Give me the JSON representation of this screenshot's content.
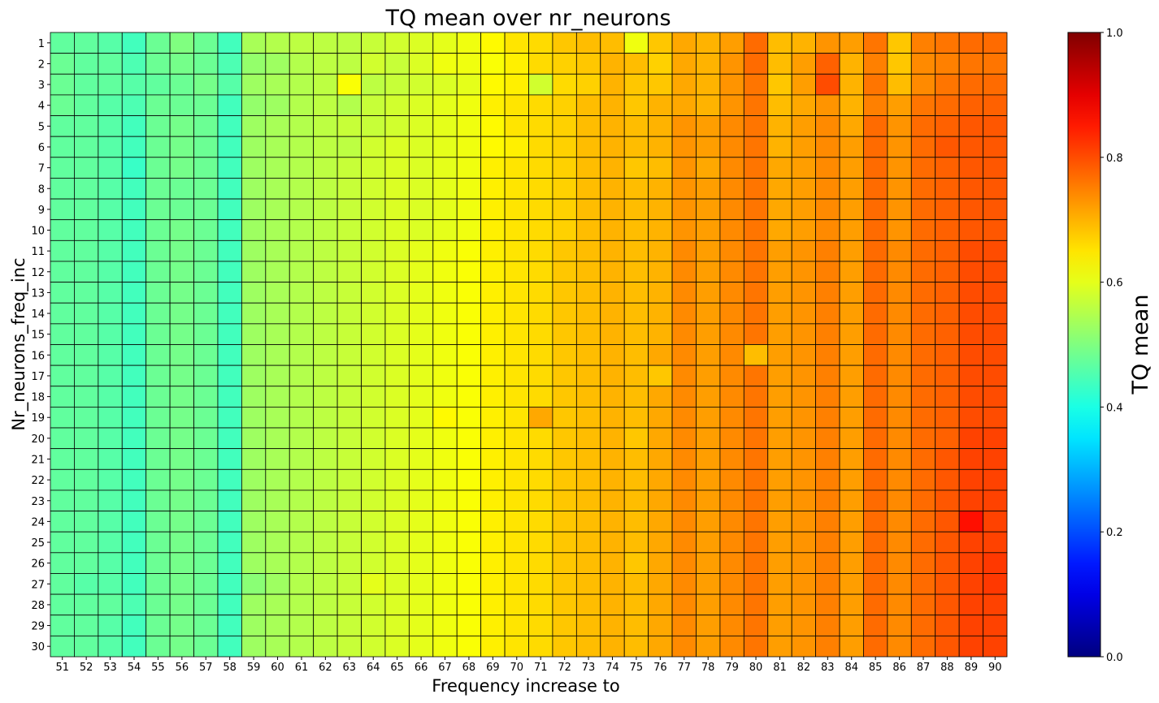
{
  "chart_data": {
    "type": "heatmap",
    "title": "TQ mean over nr_neurons",
    "xlabel": "Frequency increase to",
    "ylabel": "Nr_neurons_freq_inc",
    "colorbar_label": "TQ mean",
    "colormap": "jet",
    "vmin": 0,
    "vmax": 1,
    "colorbar_ticks": [
      "0.0",
      "0.2",
      "0.4",
      "0.6",
      "0.8",
      "1.0"
    ],
    "x": [
      "51",
      "52",
      "53",
      "54",
      "55",
      "56",
      "57",
      "58",
      "59",
      "60",
      "61",
      "62",
      "63",
      "64",
      "65",
      "66",
      "67",
      "68",
      "69",
      "70",
      "71",
      "72",
      "73",
      "74",
      "75",
      "76",
      "77",
      "78",
      "79",
      "80",
      "81",
      "82",
      "83",
      "84",
      "85",
      "86",
      "87",
      "88",
      "89",
      "90"
    ],
    "y": [
      "1",
      "2",
      "3",
      "4",
      "5",
      "6",
      "7",
      "8",
      "9",
      "10",
      "11",
      "12",
      "13",
      "14",
      "15",
      "16",
      "17",
      "18",
      "19",
      "20",
      "21",
      "22",
      "23",
      "24",
      "25",
      "26",
      "27",
      "28",
      "29",
      "30"
    ],
    "values": [
      [
        0.47,
        0.47,
        0.46,
        0.44,
        0.48,
        0.5,
        0.48,
        0.44,
        0.54,
        0.55,
        0.56,
        0.56,
        0.56,
        0.57,
        0.58,
        0.59,
        0.6,
        0.61,
        0.63,
        0.65,
        0.66,
        0.68,
        0.69,
        0.69,
        0.61,
        0.68,
        0.71,
        0.7,
        0.72,
        0.77,
        0.69,
        0.7,
        0.73,
        0.72,
        0.76,
        0.68,
        0.75,
        0.76,
        0.77,
        0.77
      ],
      [
        0.48,
        0.47,
        0.47,
        0.45,
        0.48,
        0.49,
        0.48,
        0.45,
        0.52,
        0.53,
        0.55,
        0.56,
        0.56,
        0.58,
        0.57,
        0.59,
        0.61,
        0.61,
        0.62,
        0.64,
        0.66,
        0.67,
        0.68,
        0.7,
        0.69,
        0.67,
        0.71,
        0.7,
        0.73,
        0.77,
        0.69,
        0.72,
        0.78,
        0.7,
        0.75,
        0.68,
        0.74,
        0.75,
        0.76,
        0.76
      ],
      [
        0.48,
        0.47,
        0.47,
        0.46,
        0.47,
        0.48,
        0.49,
        0.46,
        0.53,
        0.54,
        0.55,
        0.56,
        0.62,
        0.56,
        0.57,
        0.58,
        0.59,
        0.6,
        0.63,
        0.64,
        0.58,
        0.66,
        0.67,
        0.7,
        0.68,
        0.68,
        0.71,
        0.7,
        0.73,
        0.76,
        0.68,
        0.72,
        0.8,
        0.7,
        0.76,
        0.69,
        0.74,
        0.76,
        0.77,
        0.77
      ],
      [
        0.48,
        0.47,
        0.46,
        0.45,
        0.48,
        0.48,
        0.48,
        0.44,
        0.52,
        0.53,
        0.55,
        0.56,
        0.55,
        0.57,
        0.58,
        0.59,
        0.6,
        0.61,
        0.64,
        0.65,
        0.66,
        0.67,
        0.69,
        0.7,
        0.68,
        0.7,
        0.71,
        0.7,
        0.73,
        0.76,
        0.69,
        0.71,
        0.73,
        0.7,
        0.75,
        0.72,
        0.76,
        0.77,
        0.78,
        0.78
      ],
      [
        0.47,
        0.47,
        0.46,
        0.44,
        0.48,
        0.49,
        0.48,
        0.44,
        0.53,
        0.54,
        0.55,
        0.56,
        0.57,
        0.57,
        0.58,
        0.59,
        0.6,
        0.61,
        0.63,
        0.65,
        0.66,
        0.67,
        0.69,
        0.7,
        0.69,
        0.7,
        0.73,
        0.72,
        0.74,
        0.76,
        0.7,
        0.72,
        0.74,
        0.71,
        0.77,
        0.73,
        0.77,
        0.78,
        0.79,
        0.79
      ],
      [
        0.47,
        0.47,
        0.46,
        0.44,
        0.48,
        0.49,
        0.48,
        0.44,
        0.53,
        0.54,
        0.55,
        0.56,
        0.56,
        0.58,
        0.59,
        0.59,
        0.6,
        0.61,
        0.63,
        0.64,
        0.66,
        0.67,
        0.69,
        0.7,
        0.69,
        0.7,
        0.73,
        0.72,
        0.74,
        0.76,
        0.7,
        0.72,
        0.74,
        0.72,
        0.77,
        0.73,
        0.77,
        0.79,
        0.79,
        0.79
      ],
      [
        0.47,
        0.47,
        0.46,
        0.43,
        0.48,
        0.49,
        0.48,
        0.44,
        0.53,
        0.54,
        0.55,
        0.56,
        0.57,
        0.58,
        0.59,
        0.59,
        0.6,
        0.61,
        0.64,
        0.65,
        0.66,
        0.67,
        0.69,
        0.7,
        0.68,
        0.69,
        0.73,
        0.71,
        0.74,
        0.76,
        0.71,
        0.72,
        0.74,
        0.72,
        0.77,
        0.73,
        0.77,
        0.78,
        0.79,
        0.79
      ],
      [
        0.47,
        0.47,
        0.46,
        0.44,
        0.48,
        0.48,
        0.48,
        0.44,
        0.53,
        0.54,
        0.55,
        0.56,
        0.57,
        0.58,
        0.59,
        0.59,
        0.6,
        0.61,
        0.64,
        0.65,
        0.66,
        0.67,
        0.69,
        0.7,
        0.69,
        0.7,
        0.73,
        0.72,
        0.74,
        0.76,
        0.71,
        0.72,
        0.74,
        0.72,
        0.77,
        0.73,
        0.77,
        0.78,
        0.79,
        0.79
      ],
      [
        0.47,
        0.47,
        0.46,
        0.44,
        0.48,
        0.48,
        0.48,
        0.44,
        0.53,
        0.54,
        0.55,
        0.56,
        0.57,
        0.58,
        0.59,
        0.59,
        0.6,
        0.61,
        0.64,
        0.65,
        0.66,
        0.67,
        0.69,
        0.7,
        0.69,
        0.7,
        0.73,
        0.72,
        0.74,
        0.76,
        0.71,
        0.72,
        0.74,
        0.72,
        0.77,
        0.73,
        0.77,
        0.78,
        0.79,
        0.79
      ],
      [
        0.47,
        0.47,
        0.46,
        0.44,
        0.48,
        0.49,
        0.48,
        0.44,
        0.53,
        0.54,
        0.55,
        0.56,
        0.57,
        0.58,
        0.59,
        0.59,
        0.6,
        0.61,
        0.64,
        0.65,
        0.66,
        0.67,
        0.69,
        0.7,
        0.69,
        0.7,
        0.73,
        0.72,
        0.74,
        0.76,
        0.71,
        0.72,
        0.74,
        0.72,
        0.77,
        0.73,
        0.77,
        0.78,
        0.79,
        0.79
      ],
      [
        0.47,
        0.47,
        0.46,
        0.44,
        0.48,
        0.49,
        0.48,
        0.44,
        0.53,
        0.54,
        0.55,
        0.56,
        0.57,
        0.58,
        0.59,
        0.6,
        0.61,
        0.62,
        0.64,
        0.65,
        0.66,
        0.68,
        0.69,
        0.7,
        0.69,
        0.7,
        0.74,
        0.72,
        0.74,
        0.76,
        0.72,
        0.73,
        0.75,
        0.72,
        0.77,
        0.74,
        0.77,
        0.78,
        0.8,
        0.8
      ],
      [
        0.47,
        0.47,
        0.46,
        0.44,
        0.48,
        0.49,
        0.48,
        0.44,
        0.53,
        0.54,
        0.55,
        0.56,
        0.57,
        0.58,
        0.59,
        0.6,
        0.61,
        0.62,
        0.64,
        0.65,
        0.66,
        0.68,
        0.69,
        0.7,
        0.69,
        0.7,
        0.74,
        0.72,
        0.74,
        0.76,
        0.72,
        0.73,
        0.75,
        0.72,
        0.77,
        0.74,
        0.77,
        0.78,
        0.8,
        0.8
      ],
      [
        0.47,
        0.47,
        0.46,
        0.44,
        0.48,
        0.49,
        0.48,
        0.44,
        0.53,
        0.54,
        0.55,
        0.56,
        0.57,
        0.58,
        0.59,
        0.6,
        0.61,
        0.62,
        0.64,
        0.65,
        0.66,
        0.68,
        0.69,
        0.7,
        0.69,
        0.7,
        0.74,
        0.72,
        0.74,
        0.76,
        0.72,
        0.73,
        0.75,
        0.72,
        0.77,
        0.74,
        0.77,
        0.78,
        0.8,
        0.8
      ],
      [
        0.47,
        0.47,
        0.46,
        0.44,
        0.48,
        0.49,
        0.48,
        0.44,
        0.53,
        0.54,
        0.55,
        0.56,
        0.57,
        0.58,
        0.59,
        0.6,
        0.61,
        0.62,
        0.64,
        0.65,
        0.66,
        0.68,
        0.69,
        0.7,
        0.69,
        0.7,
        0.74,
        0.72,
        0.74,
        0.76,
        0.72,
        0.73,
        0.75,
        0.72,
        0.77,
        0.74,
        0.77,
        0.78,
        0.8,
        0.8
      ],
      [
        0.47,
        0.47,
        0.46,
        0.44,
        0.48,
        0.49,
        0.48,
        0.44,
        0.53,
        0.54,
        0.55,
        0.56,
        0.57,
        0.58,
        0.59,
        0.6,
        0.61,
        0.62,
        0.64,
        0.65,
        0.66,
        0.68,
        0.69,
        0.7,
        0.69,
        0.7,
        0.74,
        0.72,
        0.74,
        0.76,
        0.72,
        0.73,
        0.75,
        0.72,
        0.77,
        0.74,
        0.77,
        0.78,
        0.8,
        0.8
      ],
      [
        0.47,
        0.47,
        0.46,
        0.44,
        0.48,
        0.49,
        0.48,
        0.44,
        0.53,
        0.54,
        0.55,
        0.56,
        0.57,
        0.58,
        0.59,
        0.6,
        0.61,
        0.62,
        0.64,
        0.65,
        0.66,
        0.68,
        0.69,
        0.7,
        0.69,
        0.71,
        0.74,
        0.72,
        0.74,
        0.69,
        0.72,
        0.73,
        0.75,
        0.72,
        0.77,
        0.74,
        0.77,
        0.78,
        0.8,
        0.8
      ],
      [
        0.47,
        0.47,
        0.46,
        0.44,
        0.48,
        0.49,
        0.48,
        0.44,
        0.53,
        0.54,
        0.55,
        0.56,
        0.57,
        0.58,
        0.59,
        0.6,
        0.61,
        0.62,
        0.64,
        0.65,
        0.66,
        0.68,
        0.69,
        0.7,
        0.69,
        0.68,
        0.74,
        0.72,
        0.74,
        0.76,
        0.72,
        0.73,
        0.75,
        0.72,
        0.77,
        0.74,
        0.77,
        0.78,
        0.8,
        0.8
      ],
      [
        0.47,
        0.47,
        0.46,
        0.44,
        0.48,
        0.49,
        0.48,
        0.44,
        0.53,
        0.54,
        0.55,
        0.56,
        0.57,
        0.58,
        0.59,
        0.6,
        0.61,
        0.62,
        0.64,
        0.65,
        0.66,
        0.68,
        0.69,
        0.7,
        0.69,
        0.71,
        0.74,
        0.72,
        0.74,
        0.76,
        0.72,
        0.73,
        0.75,
        0.72,
        0.77,
        0.74,
        0.77,
        0.78,
        0.8,
        0.8
      ],
      [
        0.47,
        0.47,
        0.46,
        0.44,
        0.48,
        0.49,
        0.48,
        0.44,
        0.53,
        0.54,
        0.55,
        0.56,
        0.57,
        0.58,
        0.59,
        0.6,
        0.63,
        0.62,
        0.64,
        0.65,
        0.71,
        0.68,
        0.69,
        0.7,
        0.69,
        0.71,
        0.74,
        0.72,
        0.74,
        0.76,
        0.72,
        0.73,
        0.75,
        0.72,
        0.77,
        0.74,
        0.77,
        0.78,
        0.8,
        0.8
      ],
      [
        0.47,
        0.47,
        0.46,
        0.44,
        0.48,
        0.49,
        0.48,
        0.44,
        0.53,
        0.54,
        0.55,
        0.56,
        0.57,
        0.58,
        0.59,
        0.6,
        0.61,
        0.62,
        0.64,
        0.65,
        0.66,
        0.68,
        0.69,
        0.7,
        0.68,
        0.71,
        0.74,
        0.72,
        0.74,
        0.76,
        0.72,
        0.73,
        0.75,
        0.72,
        0.77,
        0.74,
        0.77,
        0.78,
        0.81,
        0.81
      ],
      [
        0.47,
        0.47,
        0.46,
        0.44,
        0.48,
        0.49,
        0.48,
        0.44,
        0.53,
        0.54,
        0.55,
        0.56,
        0.57,
        0.58,
        0.59,
        0.6,
        0.61,
        0.62,
        0.64,
        0.65,
        0.66,
        0.68,
        0.69,
        0.7,
        0.69,
        0.71,
        0.74,
        0.72,
        0.74,
        0.76,
        0.72,
        0.73,
        0.75,
        0.72,
        0.77,
        0.74,
        0.77,
        0.79,
        0.81,
        0.81
      ],
      [
        0.47,
        0.47,
        0.46,
        0.44,
        0.48,
        0.49,
        0.48,
        0.44,
        0.53,
        0.54,
        0.55,
        0.56,
        0.57,
        0.58,
        0.59,
        0.6,
        0.61,
        0.62,
        0.64,
        0.65,
        0.66,
        0.68,
        0.69,
        0.7,
        0.69,
        0.71,
        0.74,
        0.72,
        0.74,
        0.76,
        0.72,
        0.73,
        0.75,
        0.72,
        0.77,
        0.74,
        0.77,
        0.79,
        0.81,
        0.81
      ],
      [
        0.47,
        0.47,
        0.46,
        0.44,
        0.48,
        0.49,
        0.48,
        0.44,
        0.53,
        0.54,
        0.55,
        0.56,
        0.57,
        0.58,
        0.59,
        0.6,
        0.61,
        0.62,
        0.64,
        0.65,
        0.66,
        0.68,
        0.69,
        0.7,
        0.69,
        0.71,
        0.74,
        0.72,
        0.74,
        0.76,
        0.72,
        0.73,
        0.75,
        0.72,
        0.77,
        0.74,
        0.77,
        0.79,
        0.81,
        0.81
      ],
      [
        0.47,
        0.47,
        0.46,
        0.44,
        0.48,
        0.49,
        0.48,
        0.44,
        0.53,
        0.54,
        0.55,
        0.56,
        0.57,
        0.58,
        0.59,
        0.6,
        0.61,
        0.62,
        0.64,
        0.65,
        0.66,
        0.68,
        0.69,
        0.7,
        0.69,
        0.71,
        0.74,
        0.72,
        0.74,
        0.76,
        0.72,
        0.73,
        0.75,
        0.72,
        0.77,
        0.74,
        0.77,
        0.79,
        0.86,
        0.81
      ],
      [
        0.47,
        0.47,
        0.46,
        0.44,
        0.48,
        0.49,
        0.48,
        0.44,
        0.53,
        0.54,
        0.55,
        0.56,
        0.57,
        0.58,
        0.59,
        0.6,
        0.61,
        0.62,
        0.64,
        0.65,
        0.66,
        0.68,
        0.69,
        0.7,
        0.69,
        0.71,
        0.74,
        0.72,
        0.74,
        0.76,
        0.72,
        0.73,
        0.75,
        0.72,
        0.77,
        0.74,
        0.77,
        0.79,
        0.81,
        0.81
      ],
      [
        0.47,
        0.47,
        0.46,
        0.44,
        0.48,
        0.49,
        0.48,
        0.44,
        0.53,
        0.54,
        0.55,
        0.56,
        0.57,
        0.58,
        0.59,
        0.6,
        0.61,
        0.62,
        0.64,
        0.65,
        0.66,
        0.68,
        0.69,
        0.7,
        0.68,
        0.71,
        0.74,
        0.72,
        0.74,
        0.76,
        0.72,
        0.73,
        0.75,
        0.72,
        0.77,
        0.74,
        0.77,
        0.79,
        0.81,
        0.82
      ],
      [
        0.47,
        0.46,
        0.46,
        0.44,
        0.48,
        0.49,
        0.48,
        0.44,
        0.51,
        0.53,
        0.55,
        0.56,
        0.57,
        0.6,
        0.59,
        0.6,
        0.61,
        0.62,
        0.64,
        0.65,
        0.66,
        0.68,
        0.69,
        0.7,
        0.69,
        0.71,
        0.74,
        0.72,
        0.74,
        0.76,
        0.72,
        0.73,
        0.75,
        0.72,
        0.77,
        0.74,
        0.77,
        0.79,
        0.81,
        0.82
      ],
      [
        0.47,
        0.47,
        0.47,
        0.45,
        0.48,
        0.49,
        0.48,
        0.44,
        0.53,
        0.54,
        0.55,
        0.56,
        0.57,
        0.58,
        0.59,
        0.6,
        0.61,
        0.62,
        0.64,
        0.65,
        0.66,
        0.68,
        0.69,
        0.7,
        0.69,
        0.71,
        0.74,
        0.72,
        0.74,
        0.76,
        0.72,
        0.73,
        0.75,
        0.72,
        0.77,
        0.74,
        0.77,
        0.79,
        0.81,
        0.81
      ],
      [
        0.47,
        0.47,
        0.46,
        0.44,
        0.48,
        0.49,
        0.48,
        0.44,
        0.53,
        0.54,
        0.55,
        0.56,
        0.57,
        0.58,
        0.59,
        0.6,
        0.61,
        0.62,
        0.64,
        0.65,
        0.66,
        0.68,
        0.69,
        0.7,
        0.69,
        0.71,
        0.74,
        0.72,
        0.74,
        0.76,
        0.72,
        0.73,
        0.75,
        0.72,
        0.77,
        0.74,
        0.77,
        0.79,
        0.81,
        0.81
      ],
      [
        0.47,
        0.47,
        0.46,
        0.44,
        0.48,
        0.49,
        0.48,
        0.44,
        0.53,
        0.54,
        0.55,
        0.56,
        0.57,
        0.58,
        0.59,
        0.6,
        0.61,
        0.62,
        0.64,
        0.65,
        0.66,
        0.68,
        0.69,
        0.7,
        0.69,
        0.71,
        0.74,
        0.72,
        0.74,
        0.76,
        0.72,
        0.73,
        0.75,
        0.72,
        0.77,
        0.74,
        0.77,
        0.79,
        0.81,
        0.81
      ]
    ]
  }
}
